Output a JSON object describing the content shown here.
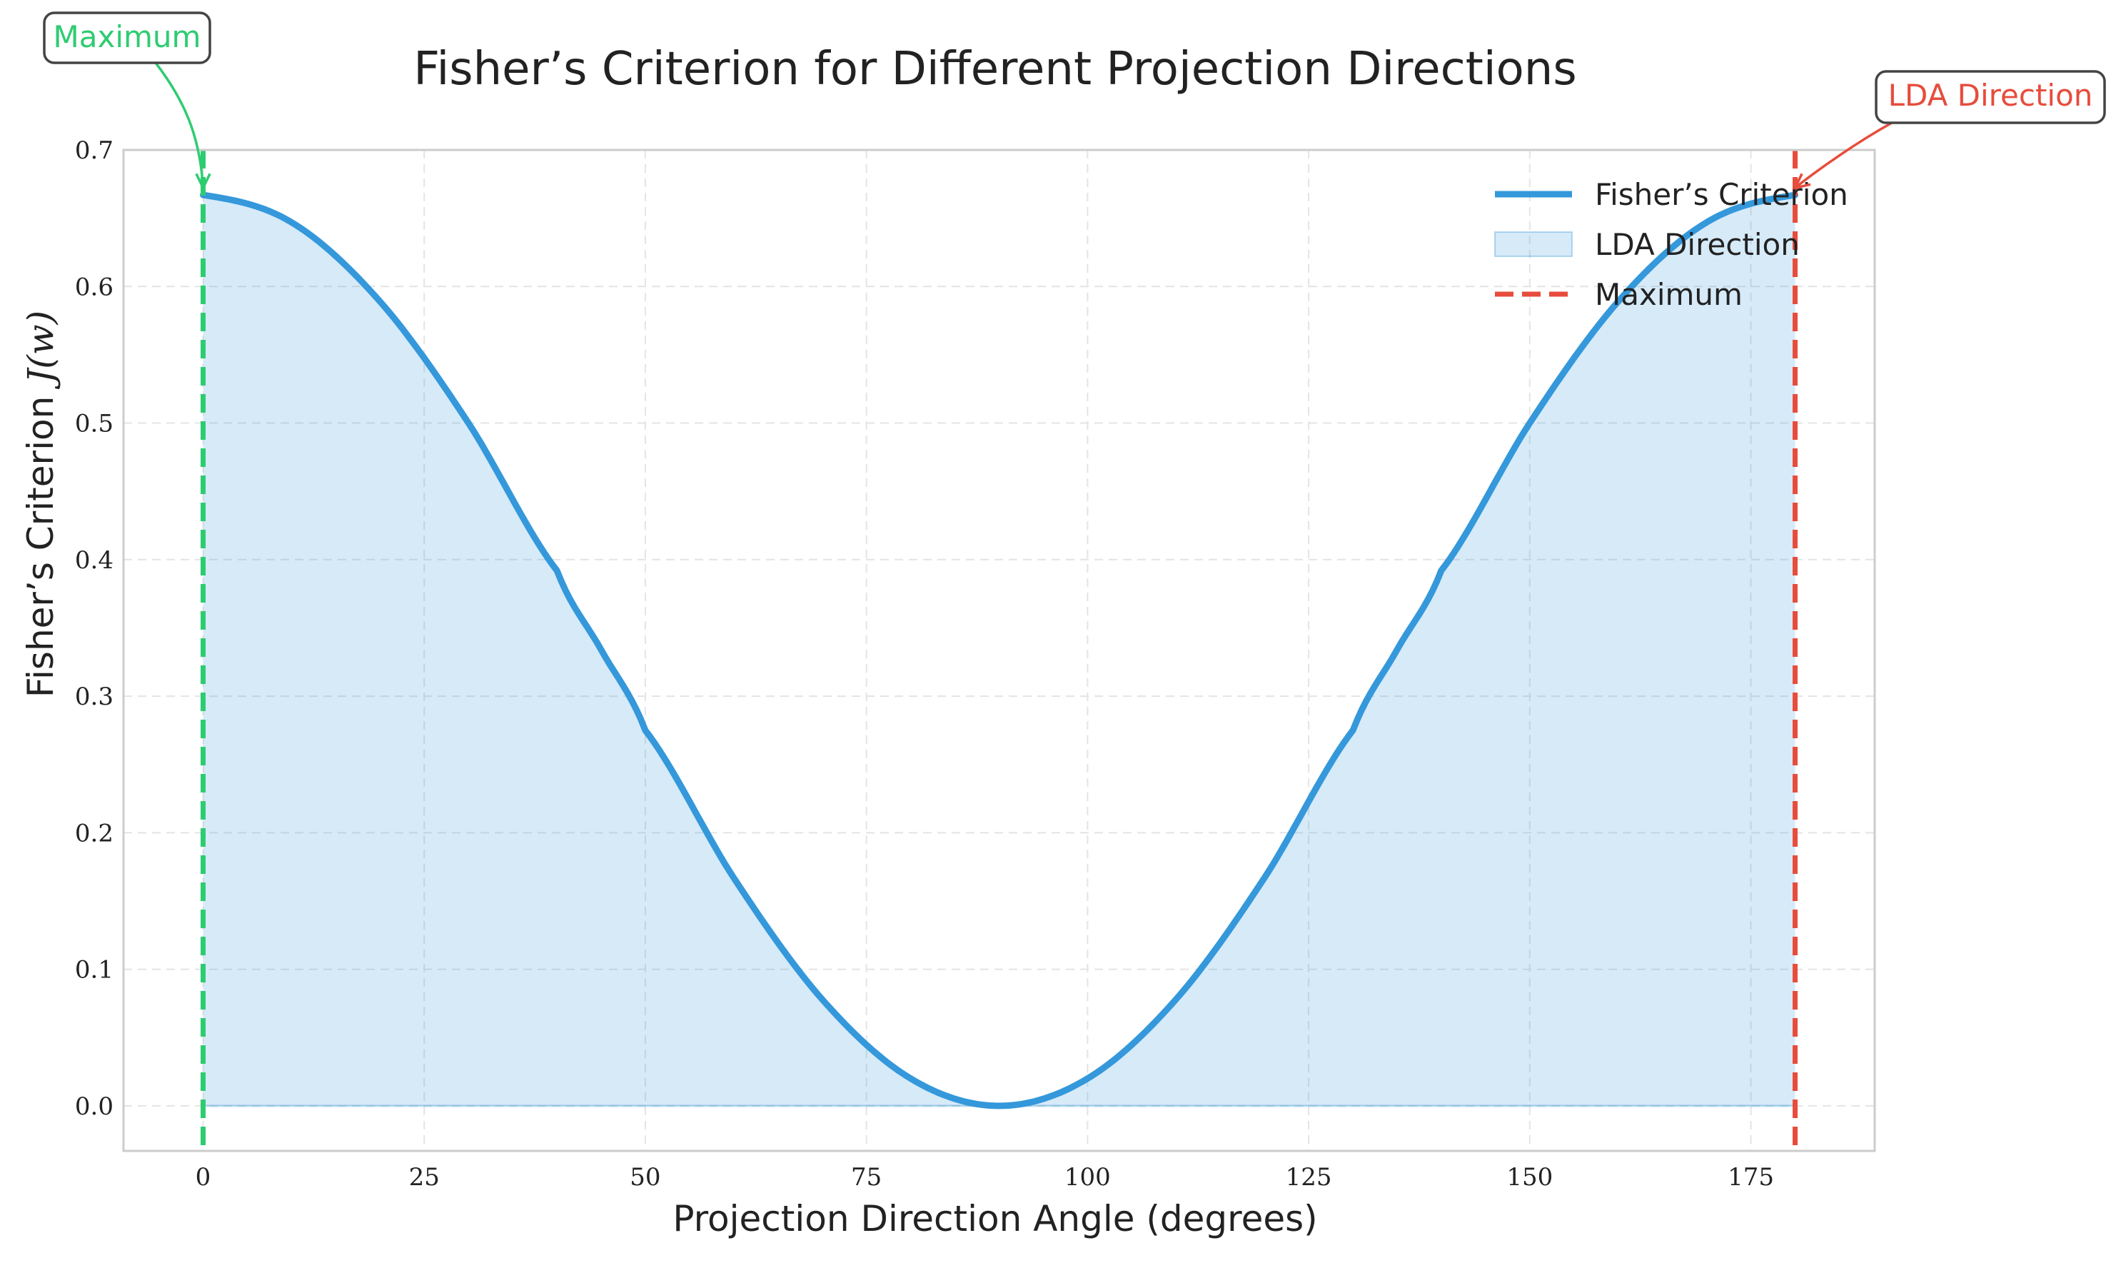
{
  "chart_data": {
    "type": "line",
    "title": "Fisher’s Criterion for Different Projection Directions",
    "xlabel": "Projection Direction Angle (degrees)",
    "ylabel": "Fisher’s Criterion",
    "ylabel_math": "J(w)",
    "xlim": [
      -9,
      189
    ],
    "ylim": [
      -0.033,
      0.7
    ],
    "xticks": [
      0,
      25,
      50,
      75,
      100,
      125,
      150,
      175
    ],
    "xtick_labels": [
      "0",
      "25",
      "50",
      "75",
      "100",
      "125",
      "150",
      "175"
    ],
    "yticks": [
      0.0,
      0.1,
      0.2,
      0.3,
      0.4,
      0.5,
      0.6,
      0.7
    ],
    "ytick_labels": [
      "0.0",
      "0.1",
      "0.2",
      "0.3",
      "0.4",
      "0.5",
      "0.6",
      "0.7"
    ],
    "grid": true,
    "legend_position": "top-right",
    "series": [
      {
        "name": "Fisher’s Criterion",
        "style": "line",
        "color": "#3498db",
        "x": [
          0,
          10,
          20,
          30,
          40,
          45,
          50,
          60,
          70,
          80,
          90,
          100,
          110,
          120,
          130,
          135,
          140,
          150,
          160,
          170,
          180
        ],
        "y": [
          0.667,
          0.647,
          0.589,
          0.5,
          0.392,
          0.334,
          0.275,
          0.167,
          0.078,
          0.02,
          0.0,
          0.02,
          0.078,
          0.167,
          0.275,
          0.334,
          0.392,
          0.5,
          0.589,
          0.647,
          0.667
        ]
      },
      {
        "name": "LDA Direction",
        "style": "fill",
        "color": "#3498db"
      },
      {
        "name": "Maximum",
        "style": "dashed",
        "color": "#e74c3c"
      }
    ],
    "vlines": [
      {
        "x": 0,
        "color": "#2ecc71",
        "style": "dashed"
      },
      {
        "x": 180,
        "color": "#e74c3c",
        "style": "dashed"
      }
    ],
    "annotations": [
      {
        "text": "Maximum",
        "x": 0,
        "y": 0.667,
        "color": "#2ecc71"
      },
      {
        "text": "LDA Direction",
        "x": 180,
        "y": 0.667,
        "color": "#e74c3c"
      }
    ]
  }
}
